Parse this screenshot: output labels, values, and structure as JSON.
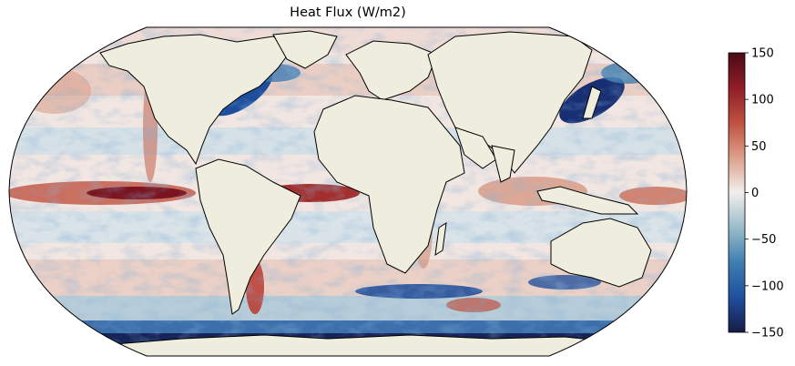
{
  "title": "Heat Flux (W/m2)",
  "colorbar": {
    "min": -150,
    "max": 150,
    "ticks": [
      "150",
      "100",
      "50",
      "0",
      "−50",
      "−100",
      "−150"
    ],
    "colors": [
      "#4a0a14",
      "#8f1d27",
      "#bf5140",
      "#dda08a",
      "#f2eeec",
      "#99bccb",
      "#3f7eb0",
      "#1f4f9e",
      "#161c45"
    ]
  },
  "map": {
    "projection": "Robinson",
    "land_color": "#efedde",
    "coastline_color": "#000000"
  }
}
